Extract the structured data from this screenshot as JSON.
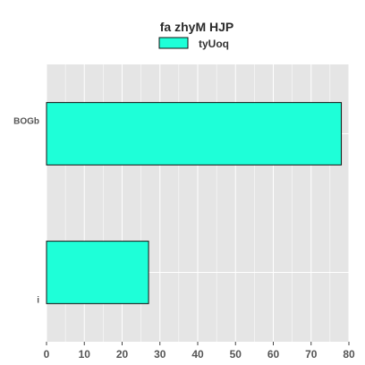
{
  "chart_data": {
    "type": "bar",
    "orientation": "horizontal",
    "title": "fa  zhyM HJP",
    "categories": [
      "BOGb",
      "i"
    ],
    "series": [
      {
        "name": "tyUoq",
        "values": [
          78,
          27
        ]
      }
    ],
    "xlim": [
      0,
      80
    ],
    "xticks": [
      0,
      10,
      20,
      30,
      40,
      50,
      60,
      70,
      80
    ],
    "grid": true,
    "legend_position": "top-center",
    "colors": {
      "bar_fill": "#1effd8",
      "bar_stroke": "#111111",
      "panel_background": "#e5e5e5",
      "grid": "#ffffff"
    }
  }
}
